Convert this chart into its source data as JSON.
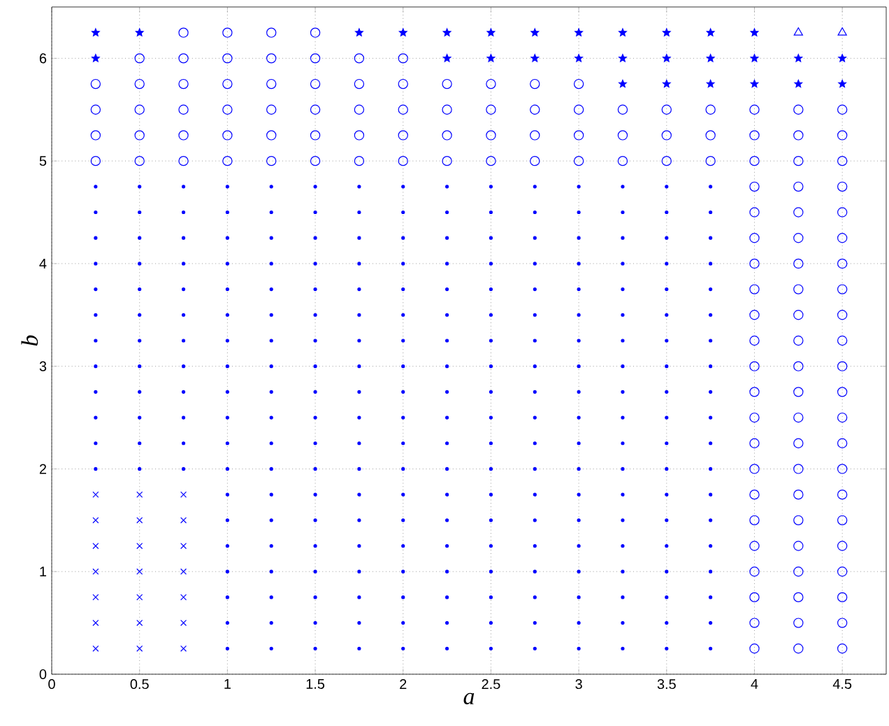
{
  "chart_data": {
    "type": "scatter",
    "xlabel": "*a*",
    "ylabel": "*b*",
    "xlim": [
      0,
      4.75
    ],
    "ylim": [
      0,
      6.5
    ],
    "xticks": [
      0,
      0.5,
      1,
      1.5,
      2,
      2.5,
      3,
      3.5,
      4,
      4.5
    ],
    "yticks": [
      0,
      1,
      2,
      3,
      4,
      5,
      6
    ],
    "grid": true,
    "series": [
      {
        "marker": "dot",
        "color": "#0000ff",
        "x": [
          0.25,
          0.25,
          0.25,
          0.25,
          0.25,
          0.25,
          0.25,
          0.25,
          0.25,
          0.25,
          0.25,
          0.25,
          0.5,
          0.5,
          0.5,
          0.5,
          0.5,
          0.5,
          0.5,
          0.5,
          0.5,
          0.5,
          0.5,
          0.5,
          0.75,
          0.75,
          0.75,
          0.75,
          0.75,
          0.75,
          0.75,
          0.75,
          0.75,
          0.75,
          0.75,
          0.75,
          1,
          1,
          1,
          1,
          1,
          1,
          1,
          1,
          1,
          1,
          1,
          1,
          1,
          1,
          1,
          1,
          1,
          1,
          1,
          1.25,
          1.25,
          1.25,
          1.25,
          1.25,
          1.25,
          1.25,
          1.25,
          1.25,
          1.25,
          1.25,
          1.25,
          1.25,
          1.25,
          1.25,
          1.25,
          1.25,
          1.25,
          1.25,
          1.5,
          1.5,
          1.5,
          1.5,
          1.5,
          1.5,
          1.5,
          1.5,
          1.5,
          1.5,
          1.5,
          1.5,
          1.5,
          1.5,
          1.5,
          1.5,
          1.5,
          1.5,
          1.5,
          1.75,
          1.75,
          1.75,
          1.75,
          1.75,
          1.75,
          1.75,
          1.75,
          1.75,
          1.75,
          1.75,
          1.75,
          1.75,
          1.75,
          1.75,
          1.75,
          1.75,
          1.75,
          1.75,
          2,
          2,
          2,
          2,
          2,
          2,
          2,
          2,
          2,
          2,
          2,
          2,
          2,
          2,
          2,
          2,
          2,
          2,
          2,
          2.25,
          2.25,
          2.25,
          2.25,
          2.25,
          2.25,
          2.25,
          2.25,
          2.25,
          2.25,
          2.25,
          2.25,
          2.25,
          2.25,
          2.25,
          2.25,
          2.25,
          2.25,
          2.25,
          2.5,
          2.5,
          2.5,
          2.5,
          2.5,
          2.5,
          2.5,
          2.5,
          2.5,
          2.5,
          2.5,
          2.5,
          2.5,
          2.5,
          2.5,
          2.5,
          2.5,
          2.5,
          2.5,
          2.75,
          2.75,
          2.75,
          2.75,
          2.75,
          2.75,
          2.75,
          2.75,
          2.75,
          2.75,
          2.75,
          2.75,
          2.75,
          2.75,
          2.75,
          2.75,
          2.75,
          2.75,
          2.75,
          3,
          3,
          3,
          3,
          3,
          3,
          3,
          3,
          3,
          3,
          3,
          3,
          3,
          3,
          3,
          3,
          3,
          3,
          3,
          3.25,
          3.25,
          3.25,
          3.25,
          3.25,
          3.25,
          3.25,
          3.25,
          3.25,
          3.25,
          3.25,
          3.25,
          3.25,
          3.25,
          3.25,
          3.25,
          3.25,
          3.25,
          3.25,
          3.5,
          3.5,
          3.5,
          3.5,
          3.5,
          3.5,
          3.5,
          3.5,
          3.5,
          3.5,
          3.5,
          3.5,
          3.5,
          3.5,
          3.5,
          3.5,
          3.5,
          3.5,
          3.5,
          3.75,
          3.75,
          3.75,
          3.75,
          3.75,
          3.75,
          3.75,
          3.75,
          3.75,
          3.75,
          3.75,
          3.75,
          3.75,
          3.75,
          3.75,
          3.75,
          3.75,
          3.75,
          3.75
        ],
        "values": [
          2,
          2.25,
          2.5,
          2.75,
          3,
          3.25,
          3.5,
          3.75,
          4,
          4.25,
          4.5,
          4.75,
          2,
          2.25,
          2.5,
          2.75,
          3,
          3.25,
          3.5,
          3.75,
          4,
          4.25,
          4.5,
          4.75,
          2,
          2.25,
          2.5,
          2.75,
          3,
          3.25,
          3.5,
          3.75,
          4,
          4.25,
          4.5,
          4.75,
          0.25,
          0.5,
          0.75,
          1,
          1.25,
          1.5,
          1.75,
          2,
          2.25,
          2.5,
          2.75,
          3,
          3.25,
          3.5,
          3.75,
          4,
          4.25,
          4.5,
          4.75,
          0.25,
          0.5,
          0.75,
          1,
          1.25,
          1.5,
          1.75,
          2,
          2.25,
          2.5,
          2.75,
          3,
          3.25,
          3.5,
          3.75,
          4,
          4.25,
          4.5,
          4.75,
          0.25,
          0.5,
          0.75,
          1,
          1.25,
          1.5,
          1.75,
          2,
          2.25,
          2.5,
          2.75,
          3,
          3.25,
          3.5,
          3.75,
          4,
          4.25,
          4.5,
          4.75,
          0.25,
          0.5,
          0.75,
          1,
          1.25,
          1.5,
          1.75,
          2,
          2.25,
          2.5,
          2.75,
          3,
          3.25,
          3.5,
          3.75,
          4,
          4.25,
          4.5,
          4.75,
          0.25,
          0.5,
          0.75,
          1,
          1.25,
          1.5,
          1.75,
          2,
          2.25,
          2.5,
          2.75,
          3,
          3.25,
          3.5,
          3.75,
          4,
          4.25,
          4.5,
          4.75,
          0.25,
          0.5,
          0.75,
          1,
          1.25,
          1.5,
          1.75,
          2,
          2.25,
          2.5,
          2.75,
          3,
          3.25,
          3.5,
          3.75,
          4,
          4.25,
          4.5,
          4.75,
          0.25,
          0.5,
          0.75,
          1,
          1.25,
          1.5,
          1.75,
          2,
          2.25,
          2.5,
          2.75,
          3,
          3.25,
          3.5,
          3.75,
          4,
          4.25,
          4.5,
          4.75,
          0.25,
          0.5,
          0.75,
          1,
          1.25,
          1.5,
          1.75,
          2,
          2.25,
          2.5,
          2.75,
          3,
          3.25,
          3.5,
          3.75,
          4,
          4.25,
          4.5,
          4.75,
          0.25,
          0.5,
          0.75,
          1,
          1.25,
          1.5,
          1.75,
          2,
          2.25,
          2.5,
          2.75,
          3,
          3.25,
          3.5,
          3.75,
          4,
          4.25,
          4.5,
          4.75,
          0.25,
          0.5,
          0.75,
          1,
          1.25,
          1.5,
          1.75,
          2,
          2.25,
          2.5,
          2.75,
          3,
          3.25,
          3.5,
          3.75,
          4,
          4.25,
          4.5,
          4.75,
          0.25,
          0.5,
          0.75,
          1,
          1.25,
          1.5,
          1.75,
          2,
          2.25,
          2.5,
          2.75,
          3,
          3.25,
          3.5,
          3.75,
          4,
          4.25,
          4.5,
          4.75,
          0.25,
          0.5,
          0.75,
          1,
          1.25,
          1.5,
          1.75,
          2,
          2.25,
          2.5,
          2.75,
          3,
          3.25,
          3.5,
          3.75,
          4,
          4.25,
          4.5,
          4.75
        ]
      },
      {
        "marker": "cross",
        "color": "#0000ff",
        "x": [
          0.25,
          0.25,
          0.25,
          0.25,
          0.25,
          0.25,
          0.25,
          0.5,
          0.5,
          0.5,
          0.5,
          0.5,
          0.5,
          0.5,
          0.75,
          0.75,
          0.75,
          0.75,
          0.75,
          0.75,
          0.75
        ],
        "values": [
          0.25,
          0.5,
          0.75,
          1,
          1.25,
          1.5,
          1.75,
          0.25,
          0.5,
          0.75,
          1,
          1.25,
          1.5,
          1.75,
          0.25,
          0.5,
          0.75,
          1,
          1.25,
          1.5,
          1.75
        ]
      },
      {
        "marker": "circle",
        "color": "#0000ff",
        "x": [
          0.75,
          1,
          1.25,
          1.5,
          0.5,
          0.75,
          1,
          1.25,
          1.5,
          1.75,
          2,
          0.25,
          0.5,
          0.75,
          1,
          1.25,
          1.5,
          1.75,
          2,
          2.25,
          2.5,
          2.75,
          3,
          0.25,
          0.5,
          0.75,
          1,
          1.25,
          1.5,
          1.75,
          2,
          2.25,
          2.5,
          2.75,
          3,
          3.25,
          3.5,
          3.75,
          4,
          4.25,
          4.5,
          0.25,
          0.5,
          0.75,
          1,
          1.25,
          1.5,
          1.75,
          2,
          2.25,
          2.5,
          2.75,
          3,
          3.25,
          3.5,
          3.75,
          4,
          4.25,
          4.5,
          0.25,
          0.5,
          0.75,
          1,
          1.25,
          1.5,
          1.75,
          2,
          2.25,
          2.5,
          2.75,
          3,
          3.25,
          3.5,
          3.75,
          4,
          4.25,
          4.5,
          4,
          4,
          4,
          4,
          4,
          4,
          4,
          4,
          4,
          4,
          4,
          4,
          4,
          4,
          4,
          4,
          4,
          4,
          4,
          4.25,
          4.25,
          4.25,
          4.25,
          4.25,
          4.25,
          4.25,
          4.25,
          4.25,
          4.25,
          4.25,
          4.25,
          4.25,
          4.25,
          4.25,
          4.25,
          4.25,
          4.25,
          4.25,
          4.5,
          4.5,
          4.5,
          4.5,
          4.5,
          4.5,
          4.5,
          4.5,
          4.5,
          4.5,
          4.5,
          4.5,
          4.5,
          4.5,
          4.5,
          4.5,
          4.5,
          4.5,
          4.5
        ],
        "values": [
          6.25,
          6.25,
          6.25,
          6.25,
          6,
          6,
          6,
          6,
          6,
          6,
          6,
          5.75,
          5.75,
          5.75,
          5.75,
          5.75,
          5.75,
          5.75,
          5.75,
          5.75,
          5.75,
          5.75,
          5.75,
          5.5,
          5.5,
          5.5,
          5.5,
          5.5,
          5.5,
          5.5,
          5.5,
          5.5,
          5.5,
          5.5,
          5.5,
          5.5,
          5.5,
          5.5,
          5.5,
          5.5,
          5.5,
          5.25,
          5.25,
          5.25,
          5.25,
          5.25,
          5.25,
          5.25,
          5.25,
          5.25,
          5.25,
          5.25,
          5.25,
          5.25,
          5.25,
          5.25,
          5.25,
          5.25,
          5.25,
          5,
          5,
          5,
          5,
          5,
          5,
          5,
          5,
          5,
          5,
          5,
          5,
          5,
          5,
          5,
          5,
          5,
          5,
          0.25,
          0.5,
          0.75,
          1,
          1.25,
          1.5,
          1.75,
          2,
          2.25,
          2.5,
          2.75,
          3,
          3.25,
          3.5,
          3.75,
          4,
          4.25,
          4.5,
          4.75,
          0.25,
          0.5,
          0.75,
          1,
          1.25,
          1.5,
          1.75,
          2,
          2.25,
          2.5,
          2.75,
          3,
          3.25,
          3.5,
          3.75,
          4,
          4.25,
          4.5,
          4.75,
          0.25,
          0.5,
          0.75,
          1,
          1.25,
          1.5,
          1.75,
          2,
          2.25,
          2.5,
          2.75,
          3,
          3.25,
          3.5,
          3.75,
          4,
          4.25,
          4.5,
          4.75
        ]
      },
      {
        "marker": "star",
        "color": "#0000ff",
        "x": [
          0.25,
          0.5,
          1.75,
          2,
          2.25,
          2.5,
          2.75,
          3,
          3.25,
          3.5,
          3.75,
          4,
          0.25,
          2.25,
          2.5,
          2.75,
          3,
          3.25,
          3.5,
          3.75,
          4,
          4.25,
          4.5,
          3.25,
          3.5,
          3.75,
          4,
          4.25,
          4.5
        ],
        "values": [
          6.25,
          6.25,
          6.25,
          6.25,
          6.25,
          6.25,
          6.25,
          6.25,
          6.25,
          6.25,
          6.25,
          6.25,
          6,
          6,
          6,
          6,
          6,
          6,
          6,
          6,
          6,
          6,
          6,
          5.75,
          5.75,
          5.75,
          5.75,
          5.75,
          5.75
        ]
      },
      {
        "marker": "triangle",
        "color": "#0000ff",
        "x": [
          4.25,
          4.5
        ],
        "values": [
          6.25,
          6.25
        ]
      }
    ]
  }
}
